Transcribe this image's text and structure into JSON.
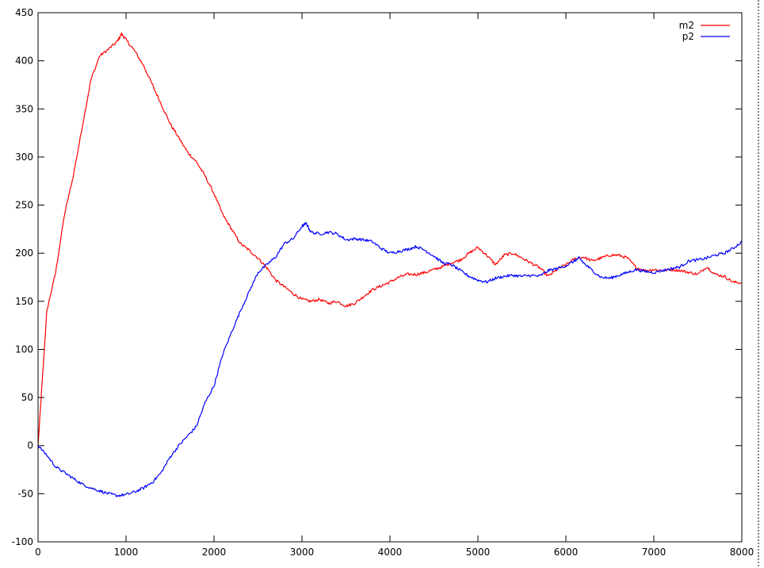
{
  "chart_data": {
    "type": "line",
    "title": "",
    "xlabel": "",
    "ylabel": "",
    "xlim": [
      0,
      8000
    ],
    "ylim": [
      -100,
      450
    ],
    "xticks": [
      0,
      1000,
      2000,
      3000,
      4000,
      5000,
      6000,
      7000,
      8000
    ],
    "yticks": [
      -100,
      -50,
      0,
      50,
      100,
      150,
      200,
      250,
      300,
      350,
      400,
      450
    ],
    "grid": false,
    "legend_position": "top-right",
    "series": [
      {
        "name": "m2",
        "color": "#ff0000",
        "points": [
          [
            0,
            0
          ],
          [
            50,
            70
          ],
          [
            100,
            140
          ],
          [
            200,
            180
          ],
          [
            300,
            240
          ],
          [
            400,
            280
          ],
          [
            500,
            330
          ],
          [
            600,
            380
          ],
          [
            700,
            405
          ],
          [
            800,
            412
          ],
          [
            900,
            420
          ],
          [
            950,
            428
          ],
          [
            1000,
            422
          ],
          [
            1100,
            410
          ],
          [
            1200,
            395
          ],
          [
            1300,
            375
          ],
          [
            1400,
            355
          ],
          [
            1500,
            335
          ],
          [
            1600,
            320
          ],
          [
            1700,
            305
          ],
          [
            1800,
            295
          ],
          [
            1900,
            280
          ],
          [
            2000,
            262
          ],
          [
            2100,
            240
          ],
          [
            2200,
            225
          ],
          [
            2300,
            210
          ],
          [
            2400,
            203
          ],
          [
            2500,
            195
          ],
          [
            2600,
            185
          ],
          [
            2700,
            172
          ],
          [
            2800,
            165
          ],
          [
            2900,
            158
          ],
          [
            3000,
            152
          ],
          [
            3100,
            150
          ],
          [
            3200,
            152
          ],
          [
            3300,
            148
          ],
          [
            3400,
            150
          ],
          [
            3500,
            145
          ],
          [
            3600,
            148
          ],
          [
            3700,
            155
          ],
          [
            3800,
            162
          ],
          [
            3900,
            166
          ],
          [
            4000,
            170
          ],
          [
            4100,
            175
          ],
          [
            4200,
            178
          ],
          [
            4300,
            178
          ],
          [
            4400,
            180
          ],
          [
            4500,
            183
          ],
          [
            4600,
            186
          ],
          [
            4700,
            190
          ],
          [
            4800,
            193
          ],
          [
            4900,
            200
          ],
          [
            5000,
            206
          ],
          [
            5100,
            198
          ],
          [
            5200,
            188
          ],
          [
            5300,
            198
          ],
          [
            5400,
            200
          ],
          [
            5500,
            195
          ],
          [
            5600,
            190
          ],
          [
            5700,
            185
          ],
          [
            5800,
            176
          ],
          [
            5900,
            183
          ],
          [
            6000,
            188
          ],
          [
            6100,
            194
          ],
          [
            6200,
            196
          ],
          [
            6300,
            192
          ],
          [
            6400,
            195
          ],
          [
            6500,
            198
          ],
          [
            6600,
            198
          ],
          [
            6700,
            195
          ],
          [
            6800,
            185
          ],
          [
            6900,
            182
          ],
          [
            7000,
            183
          ],
          [
            7100,
            182
          ],
          [
            7200,
            183
          ],
          [
            7300,
            182
          ],
          [
            7400,
            180
          ],
          [
            7500,
            178
          ],
          [
            7600,
            186
          ],
          [
            7700,
            178
          ],
          [
            7800,
            176
          ],
          [
            7900,
            170
          ],
          [
            8000,
            169
          ]
        ]
      },
      {
        "name": "p2",
        "color": "#0000ff",
        "points": [
          [
            0,
            0
          ],
          [
            100,
            -10
          ],
          [
            200,
            -22
          ],
          [
            300,
            -28
          ],
          [
            400,
            -34
          ],
          [
            500,
            -40
          ],
          [
            600,
            -44
          ],
          [
            700,
            -47
          ],
          [
            800,
            -50
          ],
          [
            900,
            -52
          ],
          [
            1000,
            -51
          ],
          [
            1100,
            -48
          ],
          [
            1200,
            -44
          ],
          [
            1300,
            -38
          ],
          [
            1400,
            -28
          ],
          [
            1500,
            -12
          ],
          [
            1600,
            0
          ],
          [
            1700,
            10
          ],
          [
            1800,
            20
          ],
          [
            1900,
            45
          ],
          [
            2000,
            62
          ],
          [
            2100,
            95
          ],
          [
            2200,
            118
          ],
          [
            2300,
            140
          ],
          [
            2400,
            160
          ],
          [
            2500,
            180
          ],
          [
            2600,
            188
          ],
          [
            2700,
            196
          ],
          [
            2800,
            210
          ],
          [
            2900,
            215
          ],
          [
            3000,
            228
          ],
          [
            3050,
            231
          ],
          [
            3100,
            222
          ],
          [
            3200,
            220
          ],
          [
            3300,
            222
          ],
          [
            3400,
            220
          ],
          [
            3500,
            214
          ],
          [
            3600,
            215
          ],
          [
            3700,
            214
          ],
          [
            3800,
            212
          ],
          [
            3900,
            205
          ],
          [
            4000,
            200
          ],
          [
            4100,
            202
          ],
          [
            4200,
            204
          ],
          [
            4300,
            207
          ],
          [
            4400,
            203
          ],
          [
            4500,
            197
          ],
          [
            4600,
            190
          ],
          [
            4700,
            188
          ],
          [
            4800,
            182
          ],
          [
            4900,
            176
          ],
          [
            5000,
            172
          ],
          [
            5100,
            170
          ],
          [
            5200,
            174
          ],
          [
            5300,
            176
          ],
          [
            5400,
            177
          ],
          [
            5500,
            176
          ],
          [
            5600,
            177
          ],
          [
            5700,
            176
          ],
          [
            5800,
            182
          ],
          [
            5900,
            184
          ],
          [
            6000,
            187
          ],
          [
            6100,
            192
          ],
          [
            6150,
            195
          ],
          [
            6200,
            190
          ],
          [
            6300,
            182
          ],
          [
            6400,
            175
          ],
          [
            6500,
            174
          ],
          [
            6600,
            177
          ],
          [
            6700,
            180
          ],
          [
            6800,
            183
          ],
          [
            6900,
            181
          ],
          [
            7000,
            180
          ],
          [
            7100,
            182
          ],
          [
            7200,
            184
          ],
          [
            7300,
            186
          ],
          [
            7400,
            192
          ],
          [
            7500,
            193
          ],
          [
            7600,
            195
          ],
          [
            7700,
            198
          ],
          [
            7800,
            200
          ],
          [
            7900,
            205
          ],
          [
            8000,
            212
          ]
        ]
      }
    ]
  }
}
